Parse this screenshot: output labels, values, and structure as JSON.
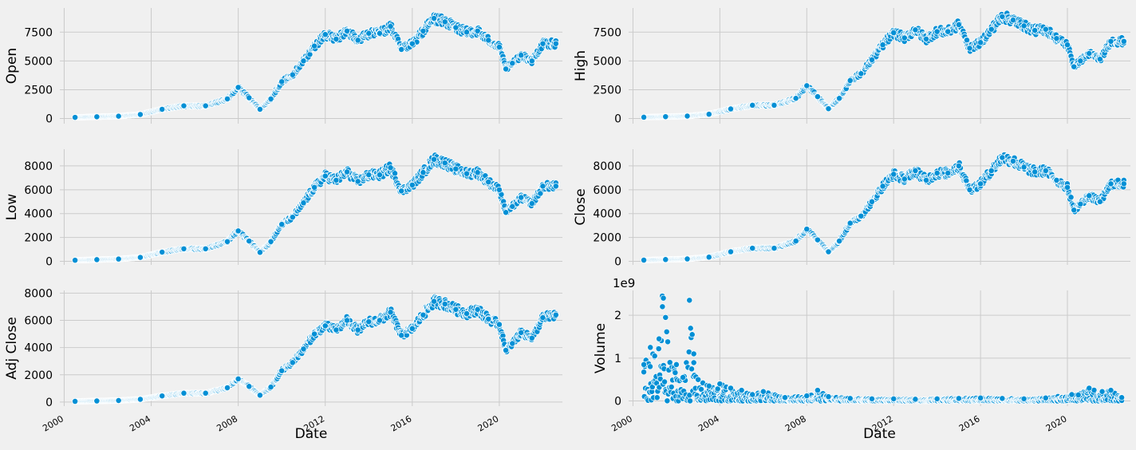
{
  "colors": {
    "background": "#f0f0f0",
    "grid": "#cbcbcb",
    "marker_fill": "#008fd5",
    "marker_edge": "#ffffff"
  },
  "x_tick_labels": [
    "2000",
    "2004",
    "2008",
    "2012",
    "2016",
    "2020"
  ],
  "chart_data": [
    {
      "type": "scatter",
      "ylabel": "Open",
      "xlabel": "",
      "xlim": [
        1999.8,
        2022.9
      ],
      "ylim": [
        -450,
        9600
      ],
      "yticks": [
        0,
        2500,
        5000,
        7500
      ],
      "ytick_labels": [
        "0",
        "2500",
        "5000",
        "7500"
      ],
      "series": [
        {
          "name": "Open",
          "x": [
            2000.5,
            2001.5,
            2002.5,
            2003.5,
            2004.5,
            2005.5,
            2006.5,
            2007.5,
            2008.0,
            2008.5,
            2009.0,
            2009.5,
            2010.0,
            2010.5,
            2011.0,
            2011.5,
            2012.0,
            2012.5,
            2013.0,
            2013.5,
            2014.0,
            2014.5,
            2015.0,
            2015.5,
            2016.0,
            2016.5,
            2017.0,
            2017.5,
            2018.0,
            2018.5,
            2019.0,
            2019.5,
            2020.0,
            2020.3,
            2020.6,
            2021.0,
            2021.5,
            2022.0,
            2022.6
          ],
          "y": [
            100,
            150,
            200,
            350,
            800,
            1100,
            1100,
            1700,
            2700,
            1800,
            800,
            1700,
            3200,
            3800,
            5000,
            6300,
            7300,
            6900,
            7600,
            6800,
            7400,
            7400,
            8000,
            6000,
            6500,
            7600,
            8700,
            8400,
            7900,
            7500,
            7600,
            6800,
            6200,
            4300,
            4800,
            5500,
            5000,
            6500,
            6500
          ]
        }
      ]
    },
    {
      "type": "scatter",
      "ylabel": "High",
      "xlabel": "",
      "xlim": [
        1999.8,
        2022.9
      ],
      "ylim": [
        -450,
        9600
      ],
      "yticks": [
        0,
        2500,
        5000,
        7500
      ],
      "ytick_labels": [
        "0",
        "2500",
        "5000",
        "7500"
      ],
      "series": [
        {
          "name": "High",
          "x": [
            2000.5,
            2001.5,
            2002.5,
            2003.5,
            2004.5,
            2005.5,
            2006.5,
            2007.5,
            2008.0,
            2008.5,
            2009.0,
            2009.5,
            2010.0,
            2010.5,
            2011.0,
            2011.5,
            2012.0,
            2012.5,
            2013.0,
            2013.5,
            2014.0,
            2014.5,
            2015.0,
            2015.5,
            2016.0,
            2016.5,
            2017.0,
            2017.5,
            2018.0,
            2018.5,
            2019.0,
            2019.5,
            2020.0,
            2020.3,
            2020.6,
            2021.0,
            2021.5,
            2022.0,
            2022.6
          ],
          "y": [
            110,
            160,
            210,
            370,
            830,
            1150,
            1150,
            1750,
            2850,
            1900,
            850,
            1750,
            3300,
            3900,
            5100,
            6400,
            7450,
            7000,
            7700,
            6900,
            7550,
            7550,
            8150,
            6100,
            6600,
            7750,
            8850,
            8550,
            8050,
            7650,
            7750,
            6950,
            6400,
            4500,
            5000,
            5650,
            5150,
            6700,
            6700
          ]
        }
      ]
    },
    {
      "type": "scatter",
      "ylabel": "Low",
      "xlabel": "",
      "xlim": [
        1999.8,
        2022.9
      ],
      "ylim": [
        -300,
        9400
      ],
      "yticks": [
        0,
        2000,
        4000,
        6000,
        8000
      ],
      "ytick_labels": [
        "0",
        "2000",
        "4000",
        "6000",
        "8000"
      ],
      "series": [
        {
          "name": "Low",
          "x": [
            2000.5,
            2001.5,
            2002.5,
            2003.5,
            2004.5,
            2005.5,
            2006.5,
            2007.5,
            2008.0,
            2008.5,
            2009.0,
            2009.5,
            2010.0,
            2010.5,
            2011.0,
            2011.5,
            2012.0,
            2012.5,
            2013.0,
            2013.5,
            2014.0,
            2014.5,
            2015.0,
            2015.5,
            2016.0,
            2016.5,
            2017.0,
            2017.5,
            2018.0,
            2018.5,
            2019.0,
            2019.5,
            2020.0,
            2020.3,
            2020.6,
            2021.0,
            2021.5,
            2022.0,
            2022.6
          ],
          "y": [
            90,
            140,
            190,
            330,
            770,
            1050,
            1050,
            1650,
            2550,
            1700,
            750,
            1650,
            3100,
            3700,
            4900,
            6200,
            7150,
            6800,
            7500,
            6700,
            7250,
            7250,
            7850,
            5900,
            6400,
            7450,
            8550,
            8250,
            7750,
            7350,
            7450,
            6650,
            6000,
            4100,
            4600,
            5350,
            4850,
            6300,
            6300
          ]
        }
      ]
    },
    {
      "type": "scatter",
      "ylabel": "Close",
      "xlabel": "",
      "xlim": [
        1999.8,
        2022.9
      ],
      "ylim": [
        -300,
        9400
      ],
      "yticks": [
        0,
        2000,
        4000,
        6000,
        8000
      ],
      "ytick_labels": [
        "0",
        "2000",
        "4000",
        "6000",
        "8000"
      ],
      "series": [
        {
          "name": "Close",
          "x": [
            2000.5,
            2001.5,
            2002.5,
            2003.5,
            2004.5,
            2005.5,
            2006.5,
            2007.5,
            2008.0,
            2008.5,
            2009.0,
            2009.5,
            2010.0,
            2010.5,
            2011.0,
            2011.5,
            2012.0,
            2012.5,
            2013.0,
            2013.5,
            2014.0,
            2014.5,
            2015.0,
            2015.5,
            2016.0,
            2016.5,
            2017.0,
            2017.5,
            2018.0,
            2018.5,
            2019.0,
            2019.5,
            2020.0,
            2020.3,
            2020.6,
            2021.0,
            2021.5,
            2022.0,
            2022.6
          ],
          "y": [
            100,
            150,
            200,
            350,
            800,
            1100,
            1100,
            1700,
            2700,
            1800,
            800,
            1700,
            3200,
            3800,
            5000,
            6300,
            7300,
            6900,
            7600,
            6800,
            7400,
            7400,
            8000,
            6000,
            6500,
            7600,
            8700,
            8400,
            7900,
            7500,
            7600,
            6800,
            6200,
            4300,
            4800,
            5500,
            5000,
            6500,
            6500
          ]
        }
      ]
    },
    {
      "type": "scatter",
      "ylabel": "Adj Close",
      "xlabel": "Date",
      "xlim": [
        1999.8,
        2022.9
      ],
      "ylim": [
        -300,
        8200
      ],
      "yticks": [
        0,
        2000,
        4000,
        6000,
        8000
      ],
      "ytick_labels": [
        "0",
        "2000",
        "4000",
        "6000",
        "8000"
      ],
      "series": [
        {
          "name": "Adj Close",
          "x": [
            2000.5,
            2001.5,
            2002.5,
            2003.5,
            2004.5,
            2005.5,
            2006.5,
            2007.5,
            2008.0,
            2008.5,
            2009.0,
            2009.5,
            2010.0,
            2010.5,
            2011.0,
            2011.5,
            2012.0,
            2012.5,
            2013.0,
            2013.5,
            2014.0,
            2014.5,
            2015.0,
            2015.5,
            2016.0,
            2016.5,
            2017.0,
            2017.5,
            2018.0,
            2018.5,
            2019.0,
            2019.5,
            2020.0,
            2020.3,
            2020.6,
            2021.0,
            2021.5,
            2022.0,
            2022.6
          ],
          "y": [
            50,
            80,
            110,
            200,
            450,
            650,
            650,
            1050,
            1700,
            1150,
            500,
            1100,
            2300,
            2900,
            3900,
            5000,
            5600,
            5300,
            6000,
            5300,
            5900,
            6000,
            6600,
            4900,
            5400,
            6400,
            7400,
            7200,
            6800,
            6500,
            6800,
            6100,
            5700,
            3800,
            4300,
            5100,
            4700,
            6200,
            6400
          ]
        }
      ]
    },
    {
      "type": "scatter",
      "ylabel": "Volume",
      "xlabel": "Date",
      "scale_label": "1e9",
      "xlim": [
        1999.8,
        2022.9
      ],
      "ylim": [
        -0.12,
        2.58
      ],
      "yticks": [
        0,
        1,
        2
      ],
      "ytick_labels": [
        "0",
        "1",
        "2"
      ],
      "series": [
        {
          "name": "Volume",
          "x": [
            2000.5,
            2000.8,
            2001.0,
            2001.2,
            2001.35,
            2001.4,
            2001.5,
            2001.7,
            2002.0,
            2002.3,
            2002.6,
            2002.8,
            2003.0,
            2003.5,
            2004.0,
            2004.5,
            2005.0,
            2005.5,
            2006.0,
            2007.0,
            2008.0,
            2008.5,
            2009.0,
            2010.0,
            2011.0,
            2012.0,
            2013.0,
            2014.0,
            2015.0,
            2016.0,
            2017.0,
            2018.0,
            2019.0,
            2020.2,
            2020.5,
            2021.0,
            2021.6,
            2022.0,
            2022.5
          ],
          "y": [
            0.85,
            1.25,
            1.05,
            1.45,
            2.45,
            2.4,
            1.95,
            0.9,
            0.85,
            0.55,
            2.35,
            1.1,
            0.5,
            0.35,
            0.4,
            0.3,
            0.25,
            0.15,
            0.22,
            0.08,
            0.12,
            0.25,
            0.1,
            0.06,
            0.05,
            0.05,
            0.04,
            0.05,
            0.06,
            0.07,
            0.06,
            0.05,
            0.07,
            0.15,
            0.14,
            0.3,
            0.22,
            0.25,
            0.08
          ]
        }
      ]
    }
  ]
}
